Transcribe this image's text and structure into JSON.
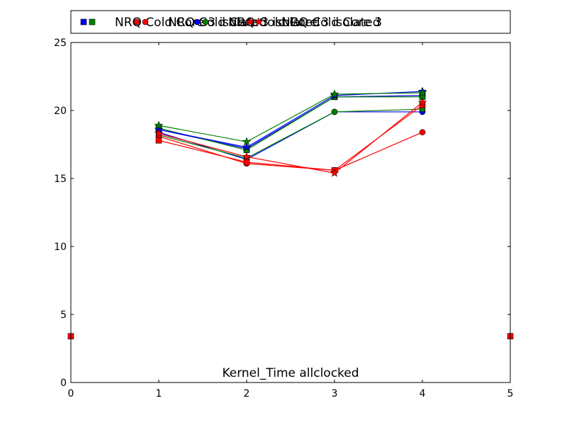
{
  "chart_data": {
    "type": "line",
    "title": "",
    "xlabel": "",
    "ylabel": "",
    "xlim": [
      0,
      5
    ],
    "ylim": [
      0,
      25
    ],
    "x_ticks": [
      0,
      1,
      2,
      3,
      4,
      5
    ],
    "y_ticks": [
      0,
      5,
      10,
      15,
      20,
      25
    ],
    "grid": false,
    "legend_position": "top",
    "annotation": "Kernel_Time allclocked",
    "legend": [
      {
        "label": "NRQ Cold Core 3 isolated",
        "marker": "s",
        "colors": [
          "#0000ff",
          "#008000"
        ]
      },
      {
        "label": "NRQ Cold Core 3 isolated",
        "marker": "o",
        "colors": [
          "#ff0000",
          "#ff0000"
        ]
      },
      {
        "label": "NRQ Cold Core 3 isolated",
        "marker": "o",
        "colors": [
          "#0000ff",
          "#008000"
        ]
      },
      {
        "label": "NRQ Cold Core 3",
        "marker": "*",
        "colors": [
          "#ff0000",
          "#ff0000"
        ]
      }
    ],
    "series": [
      {
        "color": "#0000ff",
        "marker": "s",
        "x": [
          1,
          2,
          3,
          4
        ],
        "y": [
          18.6,
          17.2,
          21.0,
          21.1
        ]
      },
      {
        "color": "#008000",
        "marker": "s",
        "x": [
          1,
          2,
          3,
          4
        ],
        "y": [
          18.7,
          17.1,
          21.0,
          21.0
        ]
      },
      {
        "color": "#0000ff",
        "marker": "o",
        "x": [
          1,
          2,
          3,
          4
        ],
        "y": [
          18.4,
          16.4,
          19.9,
          19.9
        ]
      },
      {
        "color": "#008000",
        "marker": "o",
        "x": [
          1,
          2,
          3,
          4
        ],
        "y": [
          18.2,
          16.5,
          19.9,
          20.1
        ]
      },
      {
        "color": "#0000ff",
        "marker": "*",
        "x": [
          1,
          2,
          3,
          4
        ],
        "y": [
          18.6,
          17.3,
          21.1,
          21.4
        ]
      },
      {
        "color": "#008000",
        "marker": "*",
        "x": [
          1,
          2,
          3,
          4
        ],
        "y": [
          18.9,
          17.7,
          21.2,
          21.3
        ]
      },
      {
        "color": "#ff0000",
        "marker": "o",
        "x": [
          1,
          2,
          3,
          4
        ],
        "y": [
          18.1,
          16.1,
          15.6,
          18.4
        ]
      },
      {
        "color": "#ff0000",
        "marker": "s",
        "x": [
          1,
          2,
          3,
          4
        ],
        "y": [
          17.8,
          16.2,
          15.6,
          20.4
        ]
      },
      {
        "color": "#ff0000",
        "marker": "*",
        "x": [
          1,
          2,
          3,
          4
        ],
        "y": [
          18.3,
          16.6,
          15.4,
          20.6
        ]
      }
    ],
    "edge_markers": [
      {
        "color": "#ff0000",
        "marker": "s",
        "x": 0,
        "y": 3.4
      },
      {
        "color": "#ff0000",
        "marker": "s",
        "x": 5,
        "y": 3.4
      }
    ]
  }
}
